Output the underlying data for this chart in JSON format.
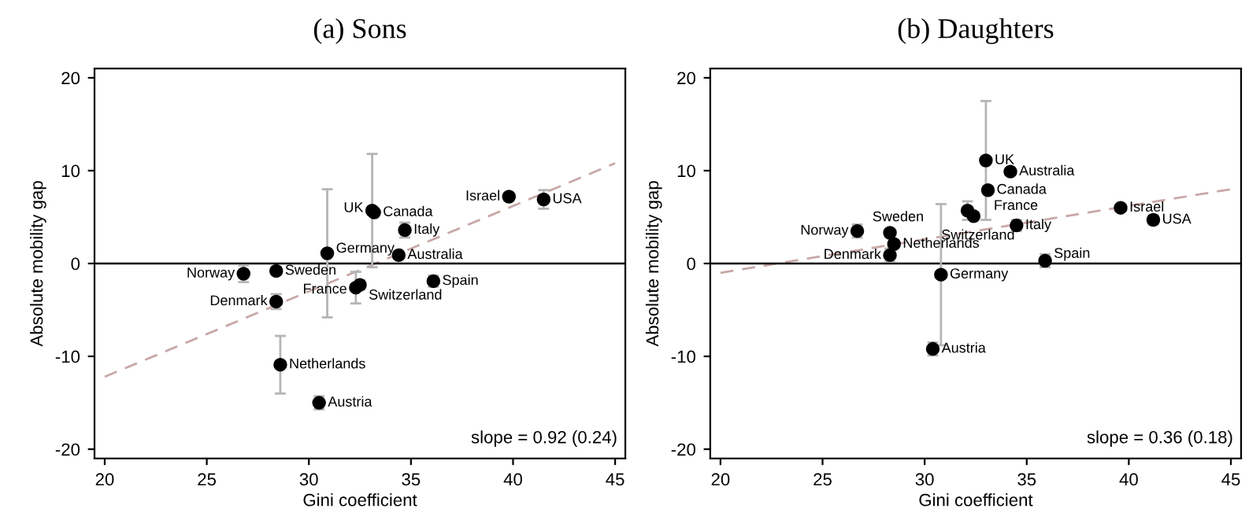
{
  "chart_data": [
    {
      "type": "scatter",
      "title": "(a) Sons",
      "xlabel": "Gini coefficient",
      "ylabel": "Absolute mobility gap",
      "xlim": [
        19.5,
        45.5
      ],
      "ylim": [
        -21,
        21
      ],
      "xticks": [
        20,
        25,
        30,
        35,
        40,
        45
      ],
      "yticks": [
        -20,
        -10,
        0,
        10,
        20
      ],
      "grid": false,
      "legend": false,
      "marker": "circle",
      "series": [
        {
          "color": "#000000",
          "x": [
            26.8,
            28.4,
            28.4,
            30.9,
            33.1,
            33.2,
            34.7,
            34.4,
            32.3,
            32.5,
            36.1,
            39.8,
            41.5,
            28.6,
            30.5
          ],
          "values": [
            -1.1,
            -0.8,
            -4.1,
            1.1,
            5.7,
            5.5,
            3.6,
            0.9,
            -2.6,
            -2.3,
            -1.9,
            7.2,
            6.9,
            -10.9,
            -15.0
          ],
          "errors": [
            0.9,
            0.4,
            0.8,
            6.9,
            6.1,
            0.4,
            0.8,
            0.4,
            1.7,
            0.5,
            0.6,
            0.4,
            1.0,
            3.1,
            0.7
          ]
        },
        {
          "type": "line",
          "color": "#c8a8a6",
          "line_style": "dashed",
          "x": [
            20,
            45
          ],
          "values": [
            -12.2,
            10.8
          ],
          "marker": "none"
        }
      ],
      "ref_lines": [
        {
          "axis": "y",
          "value": 0,
          "color": "#000000"
        }
      ],
      "annotations": [
        {
          "text": "Norway",
          "x": 26.8,
          "y": -1.1
        },
        {
          "text": "Sweden",
          "x": 28.4,
          "y": -0.8
        },
        {
          "text": "Denmark",
          "x": 28.4,
          "y": -4.1
        },
        {
          "text": "Germany",
          "x": 30.9,
          "y": 1.1
        },
        {
          "text": "UK",
          "x": 33.1,
          "y": 5.7
        },
        {
          "text": "Canada",
          "x": 33.2,
          "y": 5.5
        },
        {
          "text": "Italy",
          "x": 34.7,
          "y": 3.6
        },
        {
          "text": "Australia",
          "x": 34.4,
          "y": 0.9
        },
        {
          "text": "France",
          "x": 32.3,
          "y": -2.6
        },
        {
          "text": "Switzerland",
          "x": 32.5,
          "y": -2.3
        },
        {
          "text": "Spain",
          "x": 36.1,
          "y": -1.9
        },
        {
          "text": "Israel",
          "x": 39.8,
          "y": 7.2
        },
        {
          "text": "USA",
          "x": 41.5,
          "y": 6.9
        },
        {
          "text": "Netherlands",
          "x": 28.6,
          "y": -10.9
        },
        {
          "text": "Austria",
          "x": 30.5,
          "y": -15.0
        },
        "slope = 0.92 (0.24)"
      ]
    },
    {
      "type": "scatter",
      "title": "(b) Daughters",
      "xlabel": "Gini coefficient",
      "ylabel": "Absolute mobility gap",
      "xlim": [
        19.5,
        45.5
      ],
      "ylim": [
        -21,
        21
      ],
      "xticks": [
        20,
        25,
        30,
        35,
        40,
        45
      ],
      "yticks": [
        -20,
        -10,
        0,
        10,
        20
      ],
      "grid": false,
      "legend": false,
      "marker": "circle",
      "series": [
        {
          "color": "#000000",
          "x": [
            26.7,
            28.3,
            28.5,
            28.3,
            30.8,
            30.4,
            33.0,
            34.2,
            33.1,
            32.1,
            32.4,
            34.5,
            35.9,
            39.6,
            41.2
          ],
          "values": [
            3.5,
            3.3,
            2.1,
            0.9,
            -1.2,
            -9.2,
            11.1,
            9.9,
            7.9,
            5.7,
            5.1,
            4.1,
            0.3,
            6.0,
            4.7
          ],
          "errors": [
            0.7,
            0.4,
            0.4,
            0.7,
            7.6,
            0.7,
            6.4,
            0.3,
            0.4,
            1.0,
            0.4,
            0.6,
            0.7,
            0.3,
            0.5
          ]
        },
        {
          "type": "line",
          "color": "#c8a8a6",
          "line_style": "dashed",
          "x": [
            20,
            45
          ],
          "values": [
            -1.0,
            8.0
          ],
          "marker": "none"
        }
      ],
      "ref_lines": [
        {
          "axis": "y",
          "value": 0,
          "color": "#000000"
        }
      ],
      "annotations": [
        {
          "text": "Norway",
          "x": 26.7,
          "y": 3.5
        },
        {
          "text": "Sweden",
          "x": 28.3,
          "y": 3.3
        },
        {
          "text": "Netherlands",
          "x": 28.5,
          "y": 2.1
        },
        {
          "text": "Denmark",
          "x": 28.3,
          "y": 0.9
        },
        {
          "text": "Germany",
          "x": 30.8,
          "y": -1.2
        },
        {
          "text": "Austria",
          "x": 30.4,
          "y": -9.2
        },
        {
          "text": "UK",
          "x": 33.0,
          "y": 11.1
        },
        {
          "text": "Australia",
          "x": 34.2,
          "y": 9.9
        },
        {
          "text": "Canada",
          "x": 33.1,
          "y": 7.9
        },
        {
          "text": "France",
          "x": 32.1,
          "y": 5.7
        },
        {
          "text": "Switzerland",
          "x": 32.4,
          "y": 5.1
        },
        {
          "text": "Italy",
          "x": 34.5,
          "y": 4.1
        },
        {
          "text": "Spain",
          "x": 35.9,
          "y": 0.3
        },
        {
          "text": "Israel",
          "x": 39.6,
          "y": 6.0
        },
        {
          "text": "USA",
          "x": 41.2,
          "y": 4.7
        },
        "slope = 0.36 (0.18)"
      ]
    }
  ]
}
